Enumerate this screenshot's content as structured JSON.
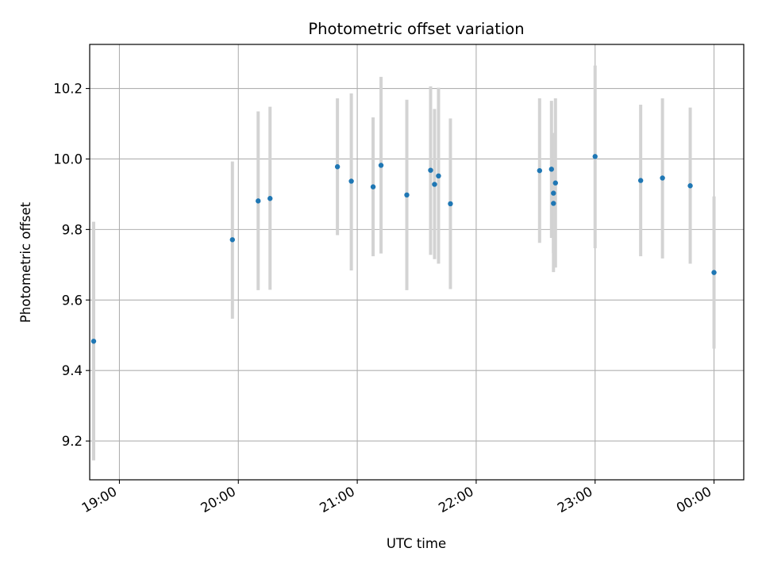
{
  "chart_data": {
    "type": "scatter",
    "title": "Photometric offset variation",
    "xlabel": "UTC time",
    "ylabel": "Photometric offset",
    "x_axis_type": "time",
    "xlim": [
      "18:45",
      "24:15"
    ],
    "ylim": [
      9.09,
      10.325
    ],
    "x_ticks": [
      {
        "t": "19:00",
        "label": "19:00"
      },
      {
        "t": "20:00",
        "label": "20:00"
      },
      {
        "t": "21:00",
        "label": "21:00"
      },
      {
        "t": "22:00",
        "label": "22:00"
      },
      {
        "t": "23:00",
        "label": "23:00"
      },
      {
        "t": "24:00",
        "label": "00:00"
      }
    ],
    "y_ticks": [
      9.2,
      9.4,
      9.6,
      9.8,
      10.0,
      10.2
    ],
    "y_tick_labels": [
      "9.2",
      "9.4",
      "9.6",
      "9.8",
      "10.0",
      "10.2"
    ],
    "grid": true,
    "colors": {
      "point": "#1f77b4",
      "errorbar": "#d3d3d3",
      "grid": "#b0b0b0"
    },
    "points": [
      {
        "t": "18:47",
        "y": 9.483,
        "ylo": 9.145,
        "yhi": 9.822
      },
      {
        "t": "19:57",
        "y": 9.771,
        "ylo": 9.547,
        "yhi": 9.993
      },
      {
        "t": "20:10",
        "y": 9.881,
        "ylo": 9.628,
        "yhi": 10.135
      },
      {
        "t": "20:16",
        "y": 9.888,
        "ylo": 9.629,
        "yhi": 10.148
      },
      {
        "t": "20:50",
        "y": 9.978,
        "ylo": 9.784,
        "yhi": 10.172
      },
      {
        "t": "20:57",
        "y": 9.937,
        "ylo": 9.684,
        "yhi": 10.186
      },
      {
        "t": "21:08",
        "y": 9.921,
        "ylo": 9.724,
        "yhi": 10.118
      },
      {
        "t": "21:12",
        "y": 9.982,
        "ylo": 9.732,
        "yhi": 10.233
      },
      {
        "t": "21:25",
        "y": 9.898,
        "ylo": 9.628,
        "yhi": 10.168
      },
      {
        "t": "21:37",
        "y": 9.968,
        "ylo": 9.728,
        "yhi": 10.206
      },
      {
        "t": "21:39",
        "y": 9.928,
        "ylo": 9.716,
        "yhi": 10.142
      },
      {
        "t": "21:41",
        "y": 9.952,
        "ylo": 9.703,
        "yhi": 10.202
      },
      {
        "t": "21:47",
        "y": 9.873,
        "ylo": 9.631,
        "yhi": 10.115
      },
      {
        "t": "22:32",
        "y": 9.967,
        "ylo": 9.762,
        "yhi": 10.172
      },
      {
        "t": "22:38",
        "y": 9.971,
        "ylo": 9.776,
        "yhi": 10.165
      },
      {
        "t": "22:39",
        "y": 9.903,
        "ylo": 9.733,
        "yhi": 10.074
      },
      {
        "t": "22:39",
        "y": 9.874,
        "ylo": 9.679,
        "yhi": 10.067
      },
      {
        "t": "22:40",
        "y": 9.932,
        "ylo": 9.692,
        "yhi": 10.172
      },
      {
        "t": "23:00",
        "y": 10.007,
        "ylo": 9.747,
        "yhi": 10.265
      },
      {
        "t": "23:23",
        "y": 9.939,
        "ylo": 9.724,
        "yhi": 10.154
      },
      {
        "t": "23:34",
        "y": 9.946,
        "ylo": 9.718,
        "yhi": 10.172
      },
      {
        "t": "23:48",
        "y": 9.924,
        "ylo": 9.703,
        "yhi": 10.146
      },
      {
        "t": "24:00",
        "y": 9.678,
        "ylo": 9.462,
        "yhi": 9.894
      }
    ]
  }
}
